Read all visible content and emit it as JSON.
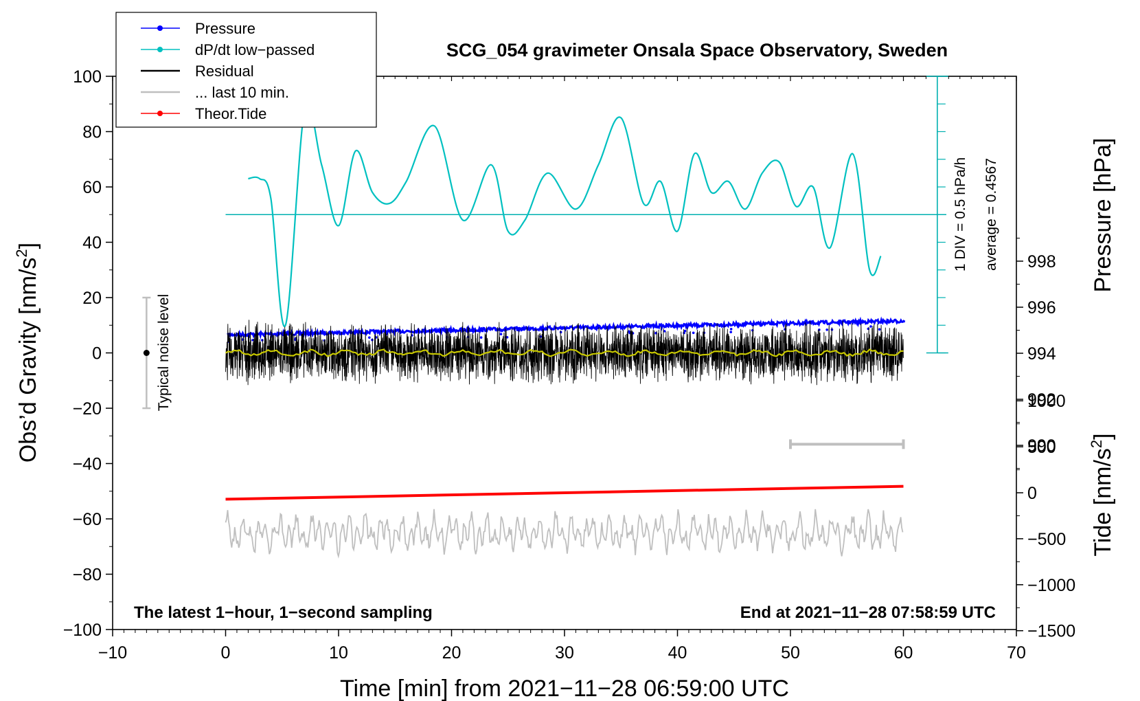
{
  "chart_data": {
    "type": "line",
    "title": "SCG_054 gravimeter Onsala Space Observatory, Sweden",
    "xlabel": "Time [min] from 2021−11−28 06:59:00 UTC",
    "ylabel_left": "Obs’d Gravity [nm/s",
    "ylabel_left_sup": "2",
    "ylabel_left_end": "]",
    "ylabel_right_pressure": "Pressure [hPa]",
    "ylabel_right_tide": "Tide [nm/s",
    "ylabel_right_tide_sup": "2",
    "ylabel_right_tide_end": "]",
    "xlim": [
      -10,
      70
    ],
    "ylim": [
      -100,
      100
    ],
    "x_ticks": [
      -10,
      0,
      10,
      20,
      30,
      40,
      50,
      60,
      70
    ],
    "x_tick_labels": [
      "−10",
      "0",
      "10",
      "20",
      "30",
      "40",
      "50",
      "60",
      "70"
    ],
    "y_ticks": [
      100,
      80,
      60,
      40,
      20,
      0,
      -20,
      -40,
      -60,
      -80,
      -100
    ],
    "y_tick_labels": [
      "100",
      "80",
      "60",
      "40",
      "20",
      "0",
      "−20",
      "−40",
      "−60",
      "−80",
      "−100"
    ],
    "pressure_ticks": [
      998,
      996,
      994,
      992,
      990
    ],
    "pressure_tick_labels": [
      "998",
      "996",
      "994",
      "992",
      "990"
    ],
    "tide_ticks": [
      1000,
      500,
      0,
      -500,
      -1000,
      -1500
    ],
    "tide_tick_labels": [
      "1000",
      "500",
      "0",
      "−500",
      "−1000",
      "−1500"
    ],
    "legend": {
      "position": "top-left",
      "entries": [
        {
          "label": "Pressure",
          "color": "#0000ff",
          "marker": true
        },
        {
          "label": "dP/dt low−passed",
          "color": "#00c0c0",
          "marker": true
        },
        {
          "label": "Residual",
          "color": "#000000",
          "marker": false
        },
        {
          "label": "... last 10 min.",
          "color": "#bfbfbf",
          "marker": false
        },
        {
          "label": "Theor.Tide",
          "color": "#ff0000",
          "marker": true
        }
      ]
    },
    "pressure_series": {
      "name": "Pressure",
      "color": "#0000ff",
      "x": [
        0,
        10,
        20,
        30,
        40,
        50,
        60
      ],
      "values_hpa": [
        994.8,
        994.9,
        995.0,
        995.1,
        995.2,
        995.3,
        995.4
      ]
    },
    "dpdt_series": {
      "name": "dP/dt low−passed",
      "color": "#00c0c0",
      "x": [
        2,
        3,
        4,
        5.3,
        7,
        8.5,
        10,
        11.5,
        13,
        14.5,
        16,
        18.5,
        21,
        23.5,
        25,
        26.5,
        28.5,
        31,
        33,
        35,
        37,
        38.5,
        40,
        41.5,
        43,
        44.5,
        46,
        47.5,
        49,
        50.5,
        52,
        53.5,
        55.5,
        57,
        58
      ],
      "values": [
        63,
        63,
        56,
        10,
        88,
        68,
        46,
        73,
        58,
        54,
        62,
        82,
        48,
        68,
        44,
        48,
        65,
        52,
        68,
        85,
        54,
        62,
        44,
        72,
        58,
        62,
        52,
        65,
        69,
        53,
        60,
        38,
        72,
        30,
        35
      ]
    },
    "dpdt_reference": {
      "level": 50,
      "div_note": "1 DIV = 0.5 hPa/h",
      "average_note": "average = 0.4567"
    },
    "residual_series": {
      "name": "Residual",
      "color": "#000000",
      "x_range": [
        0,
        60
      ],
      "amplitude": 10,
      "center": 0
    },
    "residual_smoothed": {
      "color": "#c8c800",
      "center": 0,
      "amplitude": 1
    },
    "last_10_min_series": {
      "name": "... last 10 min.",
      "color": "#bfbfbf",
      "x_range": [
        0,
        60
      ],
      "center": -65,
      "amplitude": 6
    },
    "tide_series": {
      "name": "Theor.Tide",
      "color": "#ff0000",
      "x": [
        0,
        60
      ],
      "values_nms2": [
        -70,
        70
      ]
    },
    "last_10_min_bar": {
      "x_range": [
        50,
        60
      ],
      "y": -33,
      "color": "#bfbfbf"
    },
    "noise_indicator": {
      "x": -7,
      "y_range": [
        -20,
        20
      ],
      "label": "Typical noise level"
    },
    "annotation_left": "The latest 1−hour, 1−second sampling",
    "annotation_right": "End at 2021−11−28 07:58:59 UTC"
  }
}
